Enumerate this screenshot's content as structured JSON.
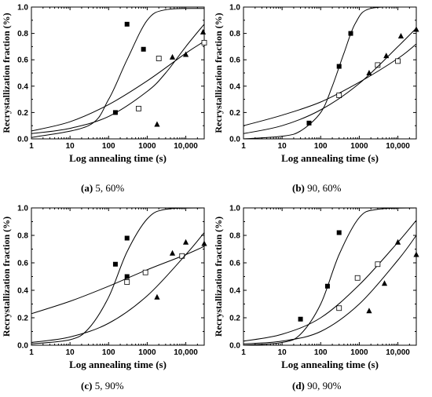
{
  "captions": [
    {
      "letter": "(a)",
      "text": "5, 60%"
    },
    {
      "letter": "(b)",
      "text": "90, 60%"
    },
    {
      "letter": "(c)",
      "text": "5, 90%"
    },
    {
      "letter": "(d)",
      "text": "90, 90%"
    }
  ],
  "chart_data": [
    {
      "type": "scatter",
      "xlabel": "Log annealing time (s)",
      "ylabel": "Recrystallization fraction (%)",
      "xscale": "log",
      "xlim": [
        1,
        30000
      ],
      "ylim": [
        0,
        1.0
      ],
      "xticks": [
        "1",
        "10",
        "100",
        "1000",
        "10,000"
      ],
      "yticks": [
        "0.0",
        "0.2",
        "0.4",
        "0.6",
        "0.8",
        "1.0"
      ],
      "series": [
        {
          "marker": "square-filled",
          "points": [
            [
              150,
              0.2
            ],
            [
              300,
              0.87
            ],
            [
              800,
              0.68
            ]
          ],
          "curve": [
            [
              1,
              0.01
            ],
            [
              30,
              0.1
            ],
            [
              100,
              0.3
            ],
            [
              300,
              0.6
            ],
            [
              1000,
              0.9
            ],
            [
              3000,
              0.98
            ],
            [
              30000,
              0.99
            ]
          ]
        },
        {
          "marker": "square-open",
          "points": [
            [
              600,
              0.23
            ],
            [
              2000,
              0.61
            ],
            [
              30000,
              0.73
            ]
          ],
          "curve": [
            [
              1,
              0.06
            ],
            [
              10,
              0.13
            ],
            [
              100,
              0.26
            ],
            [
              1000,
              0.44
            ],
            [
              10000,
              0.65
            ],
            [
              30000,
              0.74
            ]
          ]
        },
        {
          "marker": "triangle-filled",
          "points": [
            [
              1800,
              0.11
            ],
            [
              4500,
              0.62
            ],
            [
              10000,
              0.64
            ],
            [
              28000,
              0.81
            ]
          ],
          "curve": [
            [
              1,
              0.04
            ],
            [
              10,
              0.08
            ],
            [
              100,
              0.17
            ],
            [
              1000,
              0.36
            ],
            [
              3000,
              0.5
            ],
            [
              10000,
              0.7
            ],
            [
              30000,
              0.87
            ]
          ]
        }
      ]
    },
    {
      "type": "scatter",
      "xlabel": "Log annealing time (s)",
      "ylabel": "Recrystallization fraction (%)",
      "xscale": "log",
      "xlim": [
        1,
        30000
      ],
      "ylim": [
        0,
        1.0
      ],
      "xticks": [
        "1",
        "10",
        "100",
        "1000",
        "10,000"
      ],
      "yticks": [
        "0.0",
        "0.2",
        "0.4",
        "0.6",
        "0.8",
        "1.0"
      ],
      "series": [
        {
          "marker": "square-filled",
          "points": [
            [
              50,
              0.12
            ],
            [
              300,
              0.55
            ],
            [
              600,
              0.8
            ]
          ],
          "curve": [
            [
              1,
              0.0
            ],
            [
              10,
              0.02
            ],
            [
              30,
              0.06
            ],
            [
              100,
              0.2
            ],
            [
              200,
              0.4
            ],
            [
              400,
              0.65
            ],
            [
              800,
              0.88
            ],
            [
              2000,
              0.99
            ],
            [
              30000,
              1.0
            ]
          ]
        },
        {
          "marker": "square-open",
          "points": [
            [
              300,
              0.33
            ],
            [
              3000,
              0.56
            ],
            [
              10000,
              0.59
            ]
          ],
          "curve": [
            [
              1,
              0.1
            ],
            [
              10,
              0.18
            ],
            [
              100,
              0.28
            ],
            [
              1000,
              0.43
            ],
            [
              10000,
              0.61
            ],
            [
              30000,
              0.72
            ]
          ]
        },
        {
          "marker": "triangle-filled",
          "points": [
            [
              1800,
              0.5
            ],
            [
              5000,
              0.63
            ],
            [
              12000,
              0.78
            ],
            [
              30000,
              0.83
            ]
          ],
          "curve": [
            [
              1,
              0.04
            ],
            [
              10,
              0.1
            ],
            [
              100,
              0.22
            ],
            [
              1000,
              0.42
            ],
            [
              10000,
              0.7
            ],
            [
              30000,
              0.84
            ]
          ]
        }
      ]
    },
    {
      "type": "scatter",
      "xlabel": "Log annealing time (s)",
      "ylabel": "Recrystallization fraction (%)",
      "xscale": "log",
      "xlim": [
        1,
        30000
      ],
      "ylim": [
        0,
        1.0
      ],
      "xticks": [
        "1",
        "10",
        "100",
        "1000",
        "10,000"
      ],
      "yticks": [
        "0.0",
        "0.2",
        "0.4",
        "0.6",
        "0.8",
        "1.0"
      ],
      "series": [
        {
          "marker": "square-filled",
          "points": [
            [
              150,
              0.59
            ],
            [
              300,
              0.78
            ],
            [
              300,
              0.5
            ]
          ],
          "curve": [
            [
              1,
              0.01
            ],
            [
              10,
              0.04
            ],
            [
              30,
              0.12
            ],
            [
              100,
              0.35
            ],
            [
              300,
              0.68
            ],
            [
              1000,
              0.92
            ],
            [
              3000,
              0.99
            ],
            [
              30000,
              1.0
            ]
          ]
        },
        {
          "marker": "square-open",
          "points": [
            [
              300,
              0.46
            ],
            [
              900,
              0.53
            ],
            [
              8000,
              0.65
            ]
          ],
          "curve": [
            [
              1,
              0.23
            ],
            [
              10,
              0.32
            ],
            [
              100,
              0.43
            ],
            [
              1000,
              0.55
            ],
            [
              10000,
              0.66
            ],
            [
              30000,
              0.72
            ]
          ]
        },
        {
          "marker": "triangle-filled",
          "points": [
            [
              1800,
              0.35
            ],
            [
              4500,
              0.67
            ],
            [
              10000,
              0.75
            ],
            [
              30000,
              0.74
            ]
          ],
          "curve": [
            [
              1,
              0.02
            ],
            [
              10,
              0.06
            ],
            [
              100,
              0.16
            ],
            [
              1000,
              0.36
            ],
            [
              10000,
              0.66
            ],
            [
              30000,
              0.82
            ]
          ]
        }
      ]
    },
    {
      "type": "scatter",
      "xlabel": "Log annealing time (s)",
      "ylabel": "Recrystallization fraction (%)",
      "xscale": "log",
      "xlim": [
        1,
        30000
      ],
      "ylim": [
        0,
        1.0
      ],
      "xticks": [
        "1",
        "10",
        "100",
        "1000",
        "10,000"
      ],
      "yticks": [
        "0.0",
        "0.2",
        "0.4",
        "0.6",
        "0.8",
        "1.0"
      ],
      "series": [
        {
          "marker": "square-filled",
          "points": [
            [
              30,
              0.19
            ],
            [
              150,
              0.43
            ],
            [
              300,
              0.82
            ]
          ],
          "curve": [
            [
              1,
              0.0
            ],
            [
              10,
              0.02
            ],
            [
              30,
              0.08
            ],
            [
              100,
              0.3
            ],
            [
              300,
              0.66
            ],
            [
              1000,
              0.93
            ],
            [
              3000,
              0.99
            ],
            [
              30000,
              1.0
            ]
          ]
        },
        {
          "marker": "square-open",
          "points": [
            [
              300,
              0.27
            ],
            [
              900,
              0.49
            ],
            [
              3000,
              0.59
            ]
          ],
          "curve": [
            [
              1,
              0.03
            ],
            [
              10,
              0.08
            ],
            [
              100,
              0.2
            ],
            [
              1000,
              0.44
            ],
            [
              10000,
              0.75
            ],
            [
              30000,
              0.91
            ]
          ]
        },
        {
          "marker": "triangle-filled",
          "points": [
            [
              1800,
              0.25
            ],
            [
              4500,
              0.45
            ],
            [
              10000,
              0.75
            ],
            [
              30000,
              0.66
            ]
          ],
          "curve": [
            [
              1,
              0.01
            ],
            [
              10,
              0.03
            ],
            [
              100,
              0.1
            ],
            [
              1000,
              0.3
            ],
            [
              10000,
              0.62
            ],
            [
              30000,
              0.8
            ]
          ]
        }
      ]
    }
  ]
}
